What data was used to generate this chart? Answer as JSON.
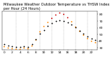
{
  "title": "Milwaukee Weather Outdoor Temperature vs THSW Index per Hour (24 Hours)",
  "hours": [
    0,
    1,
    2,
    3,
    4,
    5,
    6,
    7,
    8,
    9,
    10,
    11,
    12,
    13,
    14,
    15,
    16,
    17,
    18,
    19,
    20,
    21,
    22,
    23
  ],
  "temp": [
    36,
    34,
    33,
    32,
    32,
    33,
    32,
    36,
    43,
    51,
    57,
    63,
    67,
    70,
    71,
    70,
    68,
    65,
    61,
    56,
    51,
    47,
    44,
    42
  ],
  "thsw": [
    32,
    30,
    29,
    28,
    28,
    30,
    29,
    33,
    42,
    54,
    62,
    68,
    74,
    79,
    82,
    80,
    75,
    69,
    61,
    55,
    49,
    44,
    40,
    38
  ],
  "temp_color": "#000000",
  "thsw_color_low": "#ff8800",
  "thsw_color_high": "#cc0000",
  "thsw_threshold": 70,
  "bg_color": "#ffffff",
  "grid_color": "#999999",
  "ylim": [
    27,
    85
  ],
  "yticks": [
    30,
    40,
    50,
    60,
    70,
    80
  ],
  "ytick_labels": [
    "30",
    "40",
    "50",
    "60",
    "70",
    "80"
  ],
  "vgrid_positions": [
    3,
    6,
    9,
    12,
    15,
    18,
    21
  ],
  "marker_size": 1.8,
  "title_fontsize": 3.8,
  "tick_fontsize": 3.2
}
